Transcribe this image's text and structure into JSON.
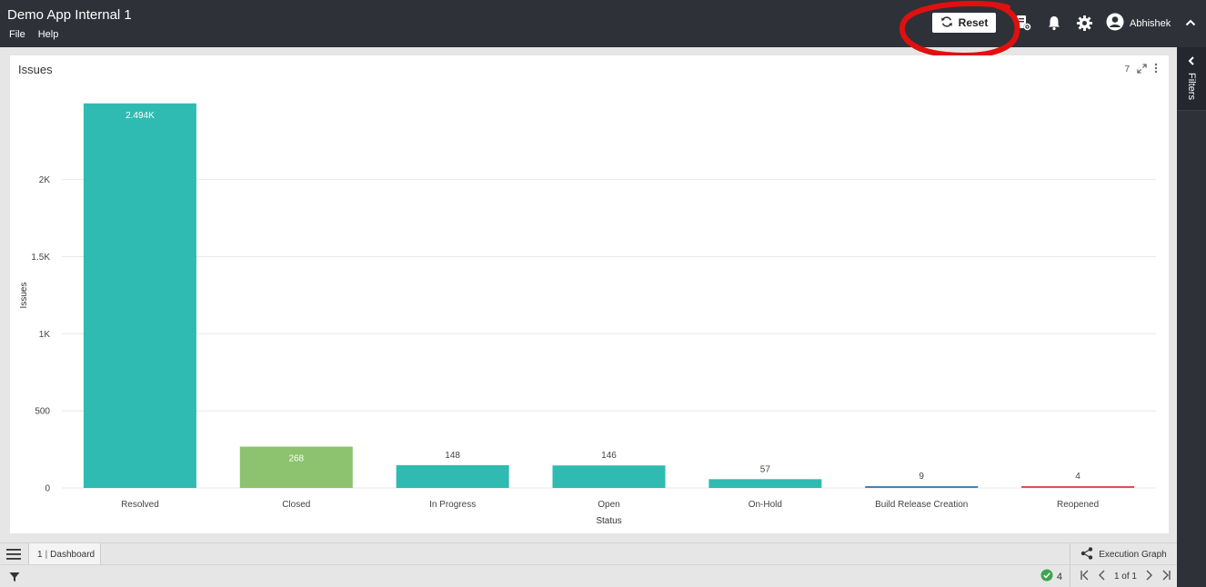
{
  "header": {
    "app_title": "Demo App Internal 1",
    "menu": [
      "File",
      "Help"
    ],
    "reset_label": "Reset",
    "icons": [
      "refresh-icon",
      "report-settings-icon",
      "bell-icon",
      "gear-icon",
      "user-circle-icon",
      "chevron-up-icon"
    ],
    "user_name": "Abhishek"
  },
  "filters_panel": {
    "label": "Filters",
    "icon": "chevron-left-icon"
  },
  "card": {
    "title": "Issues",
    "tools_count": "7",
    "icons": [
      "expand-icon",
      "more-vertical-icon"
    ]
  },
  "chart_data": {
    "type": "bar",
    "categories": [
      "Resolved",
      "Closed",
      "In Progress",
      "Open",
      "On-Hold",
      "Build Release Creation",
      "Reopened"
    ],
    "values": [
      2494,
      268,
      148,
      146,
      57,
      9,
      4
    ],
    "data_labels": [
      "2.494K",
      "268",
      "148",
      "146",
      "57",
      "9",
      "4"
    ],
    "colors": [
      "#2fbbb1",
      "#8dc26f",
      "#2fbbb1",
      "#2fbbb1",
      "#2fbbb1",
      "#4682b4",
      "#e05050"
    ],
    "xlabel": "Status",
    "ylabel": "Issues",
    "yticks": [
      0,
      500,
      1000,
      1500,
      2000
    ],
    "ytick_labels": [
      "0",
      "500",
      "1K",
      "1.5K",
      "2K"
    ],
    "ylim": [
      0,
      2500
    ],
    "grid": true
  },
  "tabbar": {
    "tab_number": "1",
    "tab_label": "Dashboard",
    "execution_graph_label": "Execution Graph"
  },
  "statusbar": {
    "ok_count": "4",
    "page_info": "1 of 1"
  },
  "colors": {
    "header_bg": "#2e3138",
    "accent_teal": "#2fbbb1",
    "annotation_red": "#e01010"
  }
}
